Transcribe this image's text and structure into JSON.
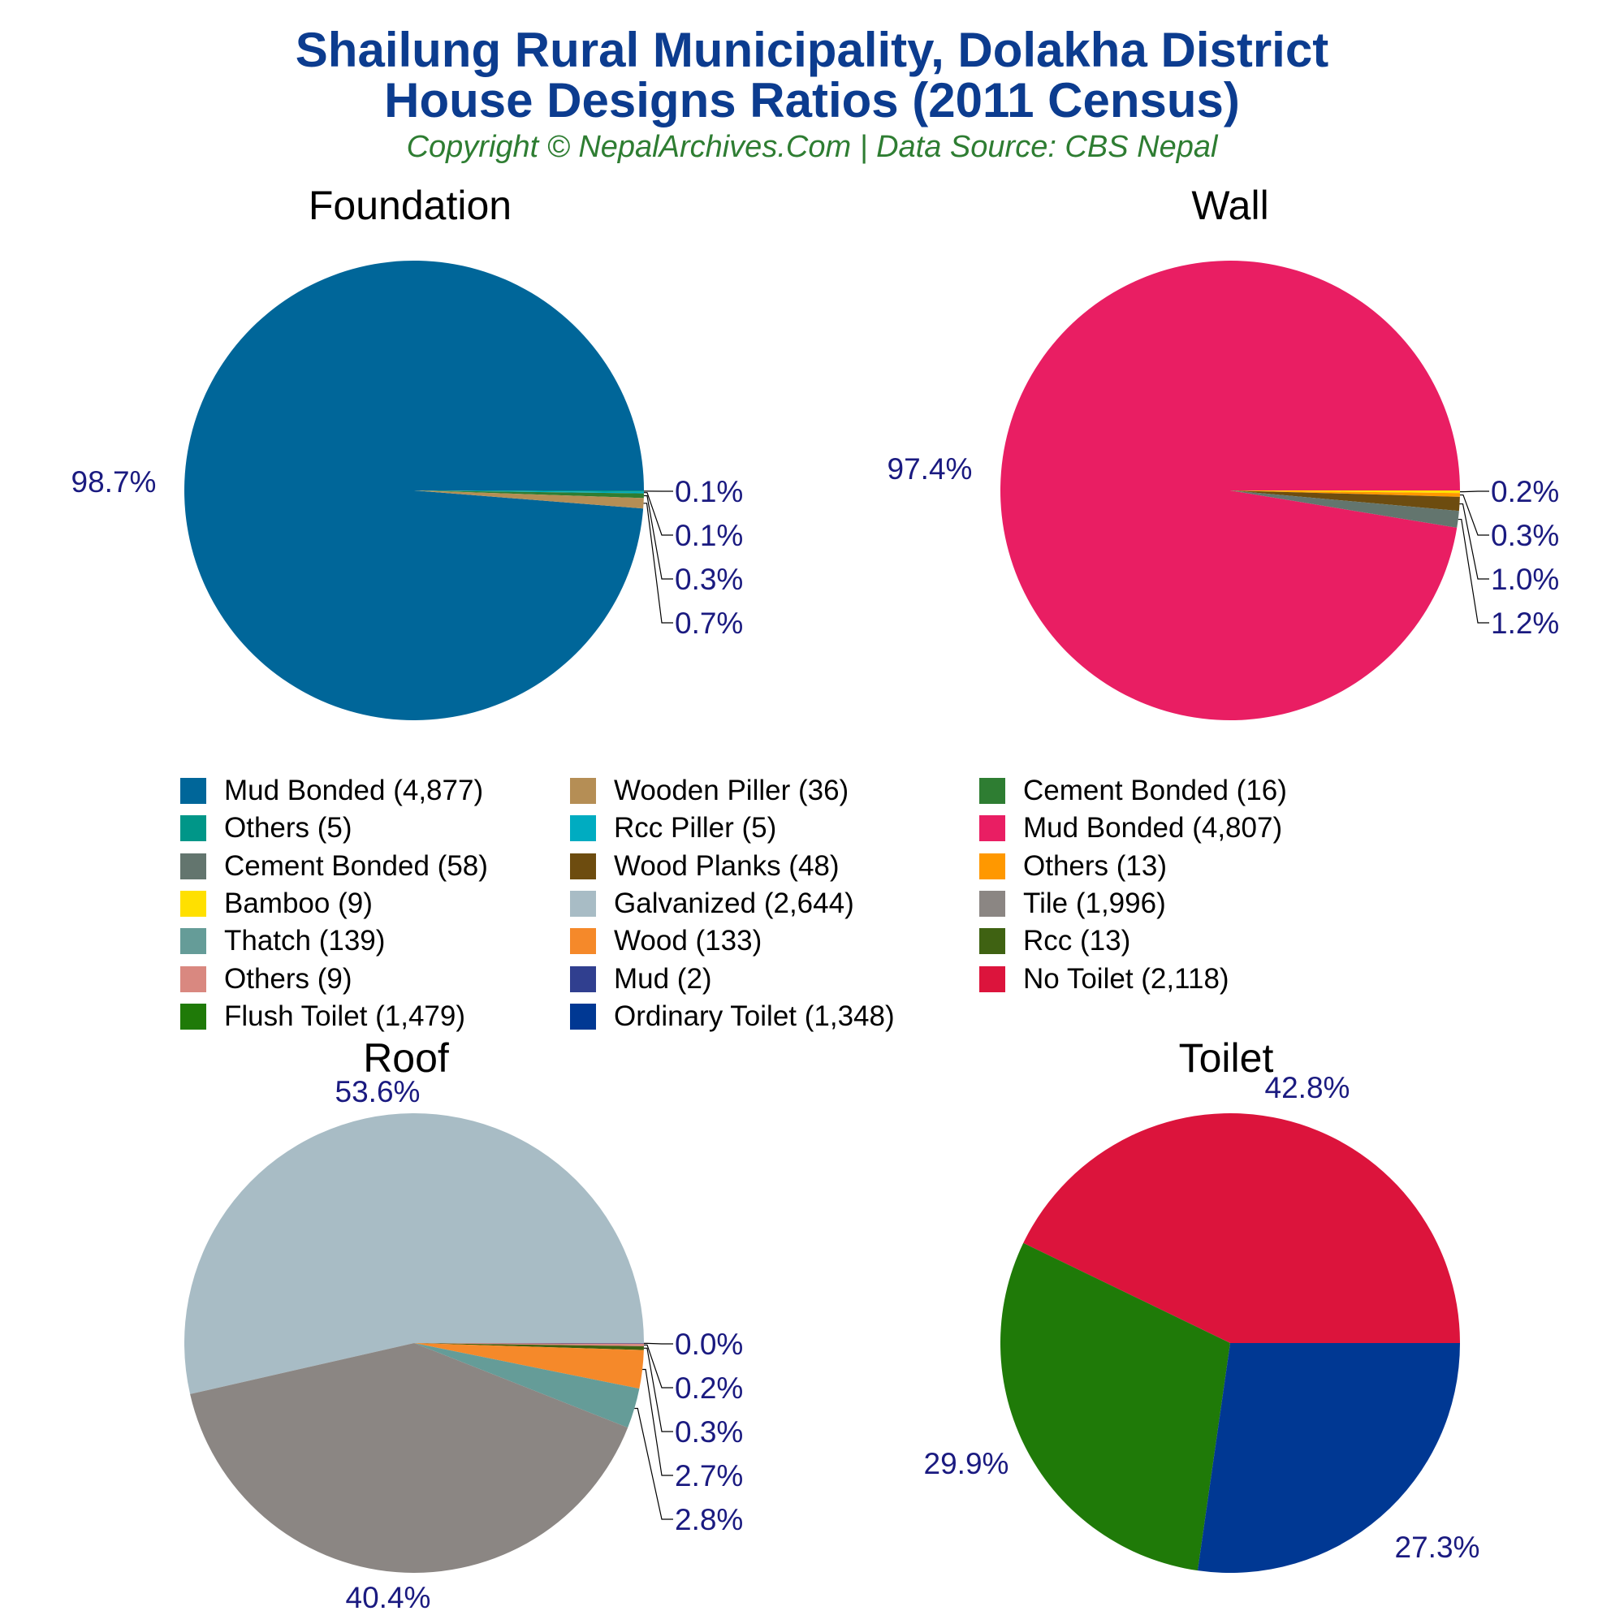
{
  "header": {
    "title_line1": "Shailung Rural Municipality, Dolakha District",
    "title_line2": "House Designs Ratios (2011 Census)",
    "subtitle": "Copyright © NepalArchives.Com | Data Source: CBS Nepal"
  },
  "chart_data": [
    {
      "type": "pie",
      "title": "Foundation",
      "slices": [
        {
          "label": "Mud Bonded",
          "value": 4877,
          "pct_label": "98.7%",
          "color": "#006699"
        },
        {
          "label": "Others",
          "value": 5,
          "pct_label": "0.1%",
          "color": "#009688"
        },
        {
          "label": "Rcc Piller",
          "value": 5,
          "pct_label": "0.1%",
          "color": "#00acc1"
        },
        {
          "label": "Cement Bonded",
          "value": 16,
          "pct_label": "0.3%",
          "color": "#2e7d32"
        },
        {
          "label": "Wooden Piller",
          "value": 36,
          "pct_label": "0.7%",
          "color": "#b58e55"
        }
      ]
    },
    {
      "type": "pie",
      "title": "Wall",
      "slices": [
        {
          "label": "Mud Bonded",
          "value": 4807,
          "pct_label": "97.4%",
          "color": "#e91e63"
        },
        {
          "label": "Bamboo",
          "value": 9,
          "pct_label": "0.2%",
          "color": "#ffe000"
        },
        {
          "label": "Others",
          "value": 13,
          "pct_label": "0.3%",
          "color": "#ff9800"
        },
        {
          "label": "Wood Planks",
          "value": 48,
          "pct_label": "1.0%",
          "color": "#6d4c0f"
        },
        {
          "label": "Cement Bonded",
          "value": 58,
          "pct_label": "1.2%",
          "color": "#63756e"
        }
      ]
    },
    {
      "type": "pie",
      "title": "Roof",
      "slices": [
        {
          "label": "Galvanized",
          "value": 2644,
          "pct_label": "53.6%",
          "color": "#a8bcc5"
        },
        {
          "label": "Mud",
          "value": 2,
          "pct_label": "0.0%",
          "color": "#303f8f"
        },
        {
          "label": "Others",
          "value": 9,
          "pct_label": "0.2%",
          "color": "#d98880"
        },
        {
          "label": "Rcc",
          "value": 13,
          "pct_label": "0.3%",
          "color": "#3f6212"
        },
        {
          "label": "Wood",
          "value": 133,
          "pct_label": "2.7%",
          "color": "#f5892a"
        },
        {
          "label": "Thatch",
          "value": 139,
          "pct_label": "2.8%",
          "color": "#659c98"
        },
        {
          "label": "Tile",
          "value": 1996,
          "pct_label": "40.4%",
          "color": "#8b8683"
        }
      ]
    },
    {
      "type": "pie",
      "title": "Toilet",
      "slices": [
        {
          "label": "No Toilet",
          "value": 2118,
          "pct_label": "42.8%",
          "color": "#dc143c"
        },
        {
          "label": "Flush Toilet",
          "value": 1479,
          "pct_label": "29.9%",
          "color": "#1f7a08"
        },
        {
          "label": "Ordinary Toilet",
          "value": 1348,
          "pct_label": "27.3%",
          "color": "#003893"
        }
      ]
    }
  ],
  "legend": [
    {
      "text": "Mud Bonded (4,877)",
      "color": "#006699"
    },
    {
      "text": "Wooden Piller (36)",
      "color": "#b58e55"
    },
    {
      "text": "Cement Bonded (16)",
      "color": "#2e7d32"
    },
    {
      "text": "Others (5)",
      "color": "#009688"
    },
    {
      "text": "Rcc Piller (5)",
      "color": "#00acc1"
    },
    {
      "text": "Mud Bonded (4,807)",
      "color": "#e91e63"
    },
    {
      "text": "Cement Bonded (58)",
      "color": "#63756e"
    },
    {
      "text": "Wood Planks (48)",
      "color": "#6d4c0f"
    },
    {
      "text": "Others (13)",
      "color": "#ff9800"
    },
    {
      "text": "Bamboo (9)",
      "color": "#ffe000"
    },
    {
      "text": "Galvanized (2,644)",
      "color": "#a8bcc5"
    },
    {
      "text": "Tile (1,996)",
      "color": "#8b8683"
    },
    {
      "text": "Thatch (139)",
      "color": "#659c98"
    },
    {
      "text": "Wood (133)",
      "color": "#f5892a"
    },
    {
      "text": "Rcc (13)",
      "color": "#3f6212"
    },
    {
      "text": "Others (9)",
      "color": "#d98880"
    },
    {
      "text": "Mud (2)",
      "color": "#303f8f"
    },
    {
      "text": "No Toilet (2,118)",
      "color": "#dc143c"
    },
    {
      "text": "Flush Toilet (1,479)",
      "color": "#1f7a08"
    },
    {
      "text": "Ordinary Toilet (1,348)",
      "color": "#003893"
    }
  ]
}
